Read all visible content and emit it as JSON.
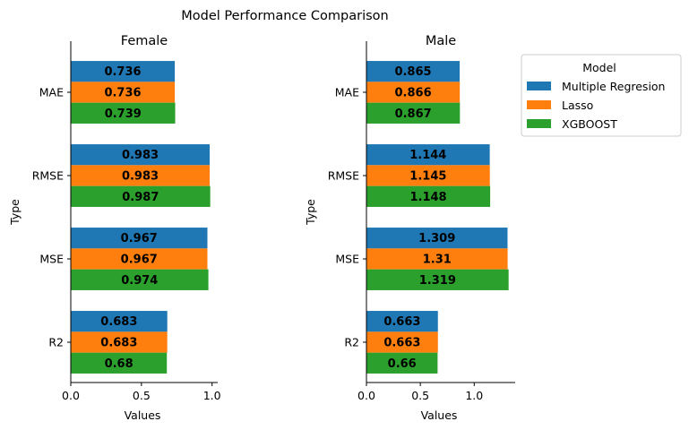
{
  "figure": {
    "title": "Model Performance Comparison"
  },
  "legend": {
    "title": "Model",
    "placement": "upper-right-outside"
  },
  "colors": {
    "Multiple Regresion": "#1f77b4",
    "Lasso": "#ff7f0e",
    "XGBOOST": "#2ca02c"
  },
  "chart_data": [
    {
      "type": "bar",
      "orientation": "horizontal",
      "title": "Female",
      "xlabel": "Values",
      "ylabel": "Type",
      "categories": [
        "MAE",
        "RMSE",
        "MSE",
        "R2"
      ],
      "xlim": [
        0,
        1.04
      ],
      "xticks": [
        "0.0",
        "0.5",
        "1.0"
      ],
      "series": [
        {
          "name": "Multiple Regresion",
          "values": [
            0.736,
            0.983,
            0.967,
            0.683
          ],
          "labels": [
            "0.736",
            "0.983",
            "0.967",
            "0.683"
          ]
        },
        {
          "name": "Lasso",
          "values": [
            0.736,
            0.983,
            0.967,
            0.683
          ],
          "labels": [
            "0.736",
            "0.983",
            "0.967",
            "0.683"
          ]
        },
        {
          "name": "XGBOOST",
          "values": [
            0.739,
            0.987,
            0.974,
            0.68
          ],
          "labels": [
            "0.739",
            "0.987",
            "0.974",
            "0.68"
          ]
        }
      ]
    },
    {
      "type": "bar",
      "orientation": "horizontal",
      "title": "Male",
      "xlabel": "Values",
      "ylabel": "Type",
      "categories": [
        "MAE",
        "RMSE",
        "MSE",
        "R2"
      ],
      "xlim": [
        0,
        1.38
      ],
      "xticks": [
        "0.0",
        "0.5",
        "1.0"
      ],
      "series": [
        {
          "name": "Multiple Regresion",
          "values": [
            0.865,
            1.144,
            1.309,
            0.663
          ],
          "labels": [
            "0.865",
            "1.144",
            "1.309",
            "0.663"
          ]
        },
        {
          "name": "Lasso",
          "values": [
            0.866,
            1.145,
            1.31,
            0.663
          ],
          "labels": [
            "0.866",
            "1.145",
            "1.31",
            "0.663"
          ]
        },
        {
          "name": "XGBOOST",
          "values": [
            0.867,
            1.148,
            1.319,
            0.66
          ],
          "labels": [
            "0.867",
            "1.148",
            "1.319",
            "0.66"
          ]
        }
      ]
    }
  ]
}
